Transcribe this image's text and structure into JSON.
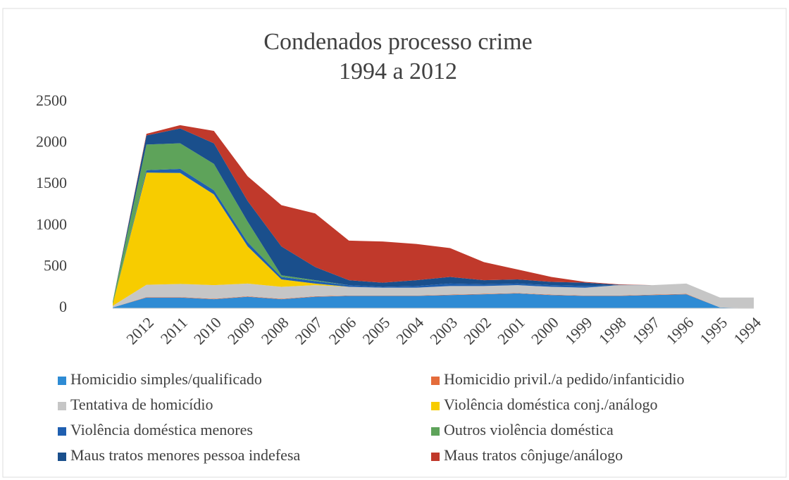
{
  "chart_data": {
    "type": "stacked_area",
    "title": "Condenados processo crime",
    "subtitle": "1994 a 2012",
    "categories": [
      null,
      "2012",
      "2011",
      "2010",
      "2009",
      "2008",
      "2007",
      "2006",
      "2005",
      "2004",
      "2003",
      "2002",
      "2001",
      "2000",
      "1999",
      "1998",
      "1997",
      "1996",
      "1995",
      "1994"
    ],
    "series": [
      {
        "name": "Homicidio simples/qualificado",
        "color": "#2e8bd4",
        "values": [
          10,
          130,
          130,
          110,
          140,
          110,
          140,
          150,
          150,
          150,
          160,
          170,
          180,
          160,
          150,
          150,
          160,
          170,
          10,
          0
        ]
      },
      {
        "name": "Homicidio privil./a pedido/infanticidio",
        "color": "#e46c3b",
        "values": [
          0,
          5,
          5,
          5,
          5,
          5,
          5,
          5,
          5,
          5,
          5,
          5,
          5,
          5,
          5,
          5,
          5,
          5,
          0,
          0
        ]
      },
      {
        "name": "Tentativa de homicídio",
        "color": "#c6c6c6",
        "values": [
          20,
          150,
          160,
          165,
          155,
          145,
          135,
          105,
          95,
          95,
          105,
          95,
          95,
          95,
          95,
          125,
          115,
          125,
          120,
          130
        ]
      },
      {
        "name": "Violência doméstica conj./análogo",
        "color": "#f7cc00",
        "values": [
          20,
          1360,
          1345,
          1100,
          450,
          90,
          20,
          0,
          0,
          0,
          0,
          0,
          0,
          0,
          0,
          0,
          0,
          0,
          0,
          0
        ]
      },
      {
        "name": "Violência doméstica menores",
        "color": "#1f5fb0",
        "values": [
          0,
          30,
          50,
          50,
          50,
          30,
          30,
          20,
          10,
          20,
          30,
          20,
          20,
          20,
          20,
          0,
          0,
          0,
          0,
          0
        ]
      },
      {
        "name": "Outros violência doméstica",
        "color": "#5ea35a",
        "values": [
          30,
          310,
          310,
          320,
          250,
          20,
          10,
          0,
          0,
          0,
          0,
          0,
          0,
          0,
          0,
          0,
          0,
          0,
          0,
          0
        ]
      },
      {
        "name": "Maus tratos menores pessoa indefesa",
        "color": "#1a4f8c",
        "values": [
          0,
          110,
          180,
          250,
          250,
          350,
          160,
          60,
          50,
          70,
          80,
          50,
          50,
          40,
          40,
          5,
          0,
          0,
          0,
          0
        ]
      },
      {
        "name": "Maus tratos cônjuge/análogo",
        "color": "#c0392b",
        "values": [
          0,
          20,
          40,
          150,
          300,
          500,
          650,
          480,
          500,
          440,
          350,
          220,
          120,
          60,
          10,
          5,
          0,
          0,
          0,
          0
        ]
      }
    ],
    "ylim": [
      0,
      2500
    ],
    "yticks": [
      0,
      500,
      1000,
      1500,
      2000,
      2500
    ],
    "grid": false
  }
}
